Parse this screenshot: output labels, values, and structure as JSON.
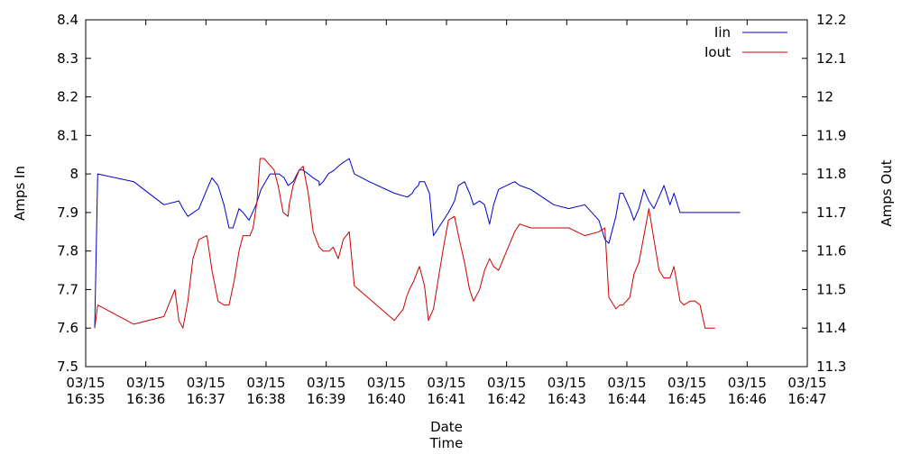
{
  "chart_data": {
    "type": "line",
    "xlabel": "Date\nTime",
    "ylabel_left": "Amps In",
    "ylabel_right": "Amps Out",
    "x_unit": "time (HH:MM on 03/15)",
    "xlim": [
      "16:35",
      "16:47"
    ],
    "ylim_left": [
      7.5,
      8.4
    ],
    "ylim_right": [
      11.3,
      12.2
    ],
    "x_ticks": [
      {
        "date": "03/15",
        "time": "16:35",
        "v": "16:35"
      },
      {
        "date": "03/15",
        "time": "16:36",
        "v": "16:36"
      },
      {
        "date": "03/15",
        "time": "16:37",
        "v": "16:37"
      },
      {
        "date": "03/15",
        "time": "16:38",
        "v": "16:38"
      },
      {
        "date": "03/15",
        "time": "16:39",
        "v": "16:39"
      },
      {
        "date": "03/15",
        "time": "16:40",
        "v": "16:40"
      },
      {
        "date": "03/15",
        "time": "16:41",
        "v": "16:41"
      },
      {
        "date": "03/15",
        "time": "16:42",
        "v": "16:42"
      },
      {
        "date": "03/15",
        "time": "16:43",
        "v": "16:43"
      },
      {
        "date": "03/15",
        "time": "16:44",
        "v": "16:44"
      },
      {
        "date": "03/15",
        "time": "16:45",
        "v": "16:45"
      },
      {
        "date": "03/15",
        "time": "16:46",
        "v": "16:46"
      },
      {
        "date": "03/15",
        "time": "16:47",
        "v": "16:47"
      }
    ],
    "y_ticks_left": [
      "7.5",
      "7.6",
      "7.7",
      "7.8",
      "7.9",
      "8",
      "8.1",
      "8.2",
      "8.3",
      "8.4"
    ],
    "y_ticks_right": [
      "11.3",
      "11.4",
      "11.5",
      "11.6",
      "11.7",
      "11.8",
      "11.9",
      "12",
      "12.1",
      "12.2"
    ],
    "grid": false,
    "legend_position": "top-right",
    "series": [
      {
        "name": "Iin",
        "color": "#0000cc",
        "axis": "left",
        "x": [
          "16:35:09",
          "16:35:12",
          "16:35:48",
          "16:36:18",
          "16:36:33",
          "16:36:37",
          "16:36:42",
          "16:36:53",
          "16:37:01",
          "16:37:06",
          "16:37:12",
          "16:37:18",
          "16:37:23",
          "16:37:27",
          "16:37:33",
          "16:37:37",
          "16:37:43",
          "16:37:50",
          "16:37:55",
          "16:38:04",
          "16:38:08",
          "16:38:13",
          "16:38:18",
          "16:38:22",
          "16:38:27",
          "16:38:33",
          "16:38:33",
          "16:38:37",
          "16:38:42",
          "16:38:47",
          "16:38:53",
          "16:38:53",
          "16:38:57",
          "16:39:02",
          "16:39:08",
          "16:39:12",
          "16:39:17",
          "16:39:23",
          "16:39:28",
          "16:39:43",
          "16:40:08",
          "16:40:21",
          "16:40:26",
          "16:40:28",
          "16:40:32",
          "16:40:33",
          "16:40:38",
          "16:40:43",
          "16:40:47",
          "16:40:52",
          "16:40:57",
          "16:41:02",
          "16:41:08",
          "16:41:12",
          "16:41:18",
          "16:41:23",
          "16:41:27",
          "16:41:33",
          "16:41:38",
          "16:41:43",
          "16:41:47",
          "16:41:52",
          "16:42:00",
          "16:42:08",
          "16:42:13",
          "16:42:24",
          "16:42:47",
          "16:43:02",
          "16:43:18",
          "16:43:32",
          "16:43:38",
          "16:43:42",
          "16:43:49",
          "16:43:53",
          "16:43:56",
          "16:44:03",
          "16:44:07",
          "16:44:12",
          "16:44:17",
          "16:44:22",
          "16:44:27",
          "16:44:32",
          "16:44:37",
          "16:44:43",
          "16:44:47",
          "16:44:53",
          "16:44:57",
          "16:45:03",
          "16:45:08",
          "16:45:13",
          "16:45:18",
          "16:45:23",
          "16:45:24",
          "16:45:27",
          "16:45:28",
          "16:45:33",
          "16:45:38",
          "16:45:38",
          "16:45:41",
          "16:45:38",
          "16:45:33",
          "16:45:28",
          "16:45:25",
          "16:45:21",
          "16:45:23",
          "16:45:28",
          "16:45:33",
          "16:45:38",
          "16:45:42",
          "16:45:48",
          "16:45:53"
        ],
        "y": [
          7.6,
          8.0,
          7.98,
          7.92,
          7.93,
          7.91,
          7.89,
          7.91,
          7.96,
          7.99,
          7.97,
          7.92,
          7.86,
          7.86,
          7.91,
          7.9,
          7.88,
          7.92,
          7.96,
          8.0,
          8.0,
          8.0,
          7.99,
          7.97,
          7.98,
          8.01,
          8.01,
          8.01,
          8.0,
          7.99,
          7.98,
          7.97,
          7.98,
          8.0,
          8.01,
          8.02,
          8.03,
          8.04,
          8.0,
          7.98,
          7.95,
          7.94,
          7.95,
          7.96,
          7.97,
          7.98,
          7.98,
          7.95,
          7.84,
          7.86,
          7.88,
          7.9,
          7.93,
          7.97,
          7.98,
          7.95,
          7.92,
          7.93,
          7.92,
          7.87,
          7.92,
          7.96,
          7.97,
          7.98,
          7.97,
          7.96,
          7.92,
          7.91,
          7.92,
          7.88,
          7.83,
          7.82,
          7.89,
          7.95,
          7.95,
          7.91,
          7.88,
          7.91,
          7.96,
          7.93,
          7.91,
          7.94,
          7.97,
          7.92,
          7.95,
          7.9,
          7.9,
          7.9,
          7.9,
          7.9,
          7.9,
          7.9,
          7.9,
          7.9,
          7.9,
          7.9,
          7.9,
          7.9,
          7.9,
          7.9,
          7.9,
          7.9,
          7.9,
          7.9,
          7.9,
          7.9,
          7.9,
          7.9,
          7.9,
          7.9,
          7.9
        ]
      },
      {
        "name": "Iout",
        "color": "#cc0000",
        "axis": "right",
        "x": [
          "16:35:09",
          "16:35:12",
          "16:35:48",
          "16:36:18",
          "16:36:29",
          "16:36:33",
          "16:36:37",
          "16:36:42",
          "16:36:47",
          "16:36:53",
          "16:37:01",
          "16:37:06",
          "16:37:12",
          "16:37:18",
          "16:37:23",
          "16:37:28",
          "16:37:33",
          "16:37:37",
          "16:37:44",
          "16:37:47",
          "16:37:51",
          "16:37:54",
          "16:37:58",
          "16:38:08",
          "16:38:12",
          "16:38:17",
          "16:38:22",
          "16:38:23",
          "16:38:27",
          "16:38:33",
          "16:38:37",
          "16:38:42",
          "16:38:47",
          "16:38:53",
          "16:38:57",
          "16:39:03",
          "16:39:07",
          "16:39:12",
          "16:39:17",
          "16:39:23",
          "16:39:28",
          "16:40:08",
          "16:40:17",
          "16:40:20",
          "16:40:23",
          "16:40:27",
          "16:40:33",
          "16:40:38",
          "16:40:42",
          "16:40:47",
          "16:40:52",
          "16:40:57",
          "16:41:02",
          "16:41:08",
          "16:41:12",
          "16:41:18",
          "16:41:23",
          "16:41:27",
          "16:41:33",
          "16:41:38",
          "16:41:43",
          "16:41:47",
          "16:41:52",
          "16:42:00",
          "16:42:08",
          "16:42:13",
          "16:42:24",
          "16:42:47",
          "16:43:02",
          "16:43:18",
          "16:43:32",
          "16:43:38",
          "16:43:42",
          "16:43:49",
          "16:43:53",
          "16:43:56",
          "16:44:03",
          "16:44:07",
          "16:44:12",
          "16:44:17",
          "16:44:22",
          "16:44:27",
          "16:44:32",
          "16:44:37",
          "16:44:43",
          "16:44:47",
          "16:44:53",
          "16:44:57",
          "16:45:03",
          "16:45:08",
          "16:45:13",
          "16:45:18",
          "16:45:23",
          "16:45:24",
          "16:45:27",
          "16:45:28"
        ],
        "y": [
          11.4,
          11.46,
          11.41,
          11.43,
          11.5,
          11.42,
          11.4,
          11.47,
          11.58,
          11.63,
          11.64,
          11.55,
          11.47,
          11.46,
          11.46,
          11.52,
          11.6,
          11.64,
          11.64,
          11.66,
          11.73,
          11.84,
          11.84,
          11.81,
          11.77,
          11.7,
          11.69,
          11.72,
          11.77,
          11.81,
          11.82,
          11.75,
          11.65,
          11.61,
          11.6,
          11.6,
          11.61,
          11.58,
          11.63,
          11.65,
          11.51,
          11.42,
          11.45,
          11.48,
          11.5,
          11.52,
          11.56,
          11.51,
          11.42,
          11.45,
          11.53,
          11.61,
          11.68,
          11.69,
          11.64,
          11.57,
          11.5,
          11.47,
          11.5,
          11.55,
          11.58,
          11.56,
          11.55,
          11.6,
          11.65,
          11.67,
          11.66,
          11.66,
          11.66,
          11.64,
          11.65,
          11.66,
          11.48,
          11.45,
          11.46,
          11.46,
          11.48,
          11.54,
          11.57,
          11.64,
          11.71,
          11.63,
          11.55,
          11.53,
          11.53,
          11.56,
          11.47,
          11.46,
          11.47,
          11.47,
          11.46,
          11.4,
          11.4,
          11.4,
          11.4,
          11.4
        ]
      }
    ]
  }
}
